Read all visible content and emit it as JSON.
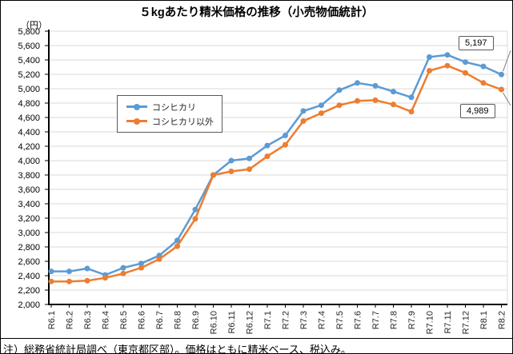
{
  "header": {
    "title": "５kgあたり精米価格の推移（小売物価統計）",
    "unit_label": "（円）"
  },
  "footnote": "注）総務省統計局調べ（東京都区部）。価格はともに精米ベース、税込み。",
  "colors": {
    "gridline": "#D9D9D9",
    "axis": "#000000",
    "tick_label": "#262626",
    "leader_line": "#808080"
  },
  "chart_data": {
    "type": "line",
    "title": "５kgあたり精米価格の推移（小売物価統計）",
    "ylabel": "（円）",
    "ylim": [
      2000,
      5800
    ],
    "ytick_step": 200,
    "grid": true,
    "legend_position": "upper-left-inside",
    "categories": [
      "R6.1",
      "R6.2",
      "R6.3",
      "R6.4",
      "R6.5",
      "R6.6",
      "R6.7",
      "R6.8",
      "R6.9",
      "R6.10",
      "R6.11",
      "R6.12",
      "R7.1",
      "R7.2",
      "R7.3",
      "R7.4",
      "R7.5",
      "R7.6",
      "R7.7",
      "R7.8",
      "R7.9",
      "R7.10",
      "R7.11",
      "R7.12",
      "R8.1",
      "R8.2"
    ],
    "series": [
      {
        "name": "コシヒカリ",
        "color": "#5B9BD5",
        "values": [
          2460,
          2460,
          2500,
          2410,
          2510,
          2570,
          2680,
          2890,
          3320,
          3800,
          4000,
          4030,
          4210,
          4350,
          4690,
          4770,
          4980,
          5080,
          5040,
          4960,
          4880,
          5440,
          5470,
          5370,
          5310,
          5197
        ]
      },
      {
        "name": "コシヒカリ以外",
        "color": "#ED7D31",
        "values": [
          2320,
          2320,
          2330,
          2370,
          2430,
          2510,
          2630,
          2810,
          3190,
          3800,
          3850,
          3880,
          4060,
          4220,
          4550,
          4660,
          4770,
          4830,
          4840,
          4780,
          4680,
          5250,
          5320,
          5220,
          5080,
          4989
        ]
      }
    ],
    "annotations": [
      {
        "text": "5,197",
        "series": "コシヒカリ",
        "category": "R8.2"
      },
      {
        "text": "4,989",
        "series": "コシヒカリ以外",
        "category": "R8.2"
      }
    ]
  }
}
